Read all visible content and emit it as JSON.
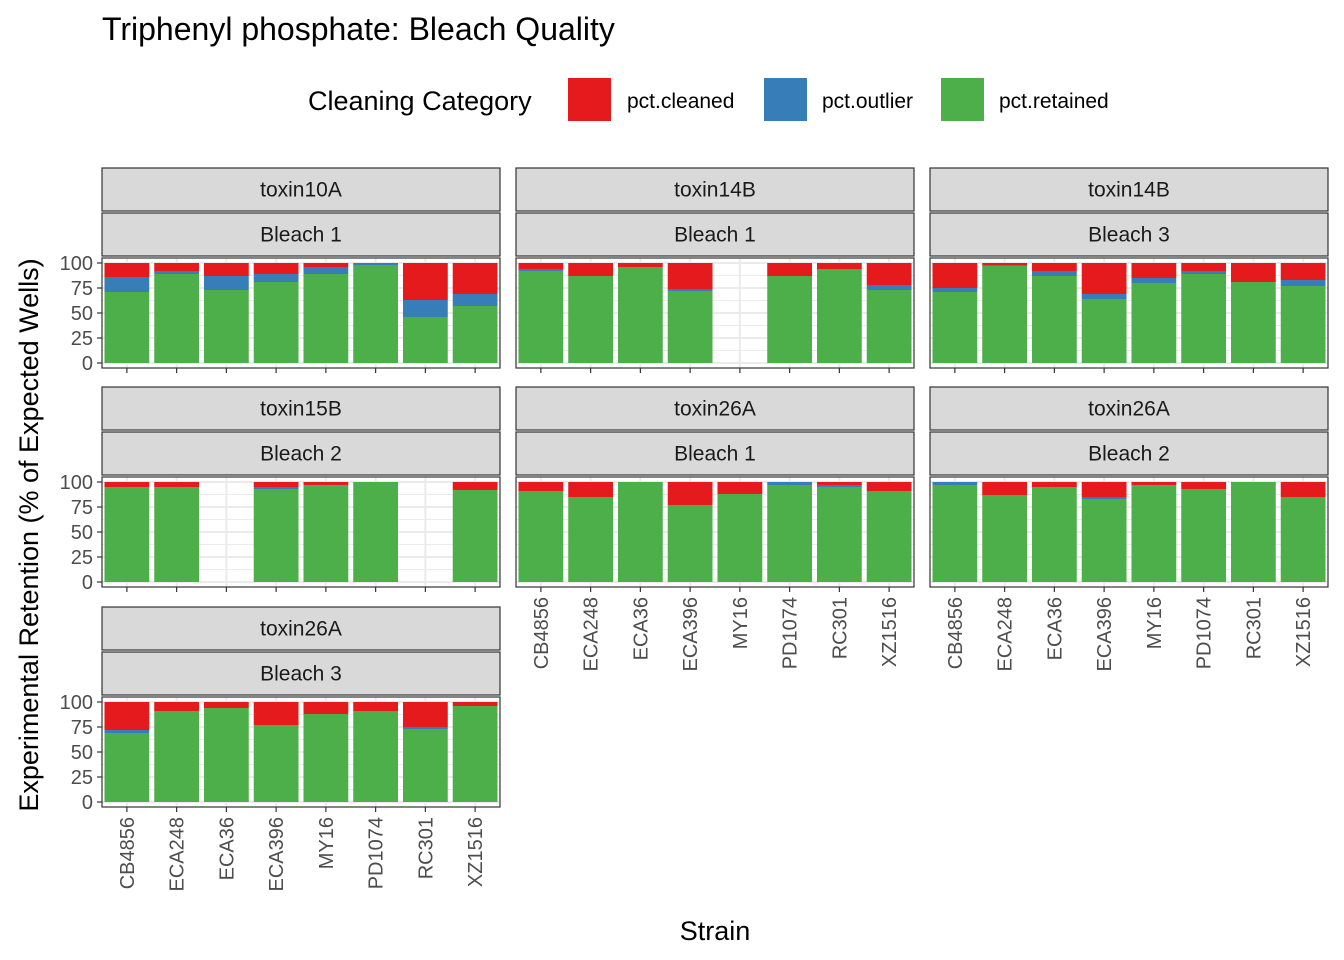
{
  "chart_data": {
    "type": "bar",
    "stacked": true,
    "title": "Triphenyl phosphate: Bleach Quality",
    "xlabel": "Strain",
    "ylabel": "Experimental Retention (% of Expected Wells)",
    "ylim": [
      0,
      100
    ],
    "yticks": [
      0,
      25,
      50,
      75,
      100
    ],
    "legend": {
      "title": "Cleaning Category",
      "position": "top",
      "entries": [
        {
          "name": "pct.cleaned",
          "color": "#E41A1C"
        },
        {
          "name": "pct.outlier",
          "color": "#377EB8"
        },
        {
          "name": "pct.retained",
          "color": "#4DAF4A"
        }
      ]
    },
    "stack_order_bottom_to_top": [
      "pct.retained",
      "pct.outlier",
      "pct.cleaned"
    ],
    "categories": [
      "CB4856",
      "ECA248",
      "ECA36",
      "ECA396",
      "MY16",
      "PD1074",
      "RC301",
      "XZ1516"
    ],
    "panels": [
      {
        "toxin": "toxin10A",
        "bleach": "Bleach 1",
        "retained": [
          71,
          89,
          73,
          81,
          89,
          98,
          46,
          57
        ],
        "outlier": [
          15,
          3,
          14,
          8,
          7,
          2,
          17,
          12
        ],
        "cleaned": [
          14,
          8,
          13,
          11,
          4,
          0,
          37,
          31
        ]
      },
      {
        "toxin": "toxin14B",
        "bleach": "Bleach 1",
        "retained": [
          92,
          87,
          96,
          72,
          null,
          87,
          94,
          73
        ],
        "outlier": [
          2,
          0,
          0,
          2,
          null,
          0,
          0,
          5
        ],
        "cleaned": [
          6,
          13,
          4,
          26,
          null,
          13,
          6,
          22
        ]
      },
      {
        "toxin": "toxin14B",
        "bleach": "Bleach 3",
        "retained": [
          71,
          97,
          87,
          64,
          80,
          89,
          81,
          77
        ],
        "outlier": [
          4,
          1,
          5,
          5,
          5,
          3,
          0,
          6
        ],
        "cleaned": [
          25,
          2,
          8,
          31,
          15,
          8,
          19,
          17
        ]
      },
      {
        "toxin": "toxin15B",
        "bleach": "Bleach 2",
        "retained": [
          95,
          95,
          null,
          93,
          97,
          100,
          null,
          92
        ],
        "outlier": [
          0,
          0,
          null,
          2,
          0,
          0,
          null,
          0
        ],
        "cleaned": [
          5,
          5,
          null,
          5,
          3,
          0,
          null,
          8
        ]
      },
      {
        "toxin": "toxin26A",
        "bleach": "Bleach 1",
        "retained": [
          91,
          85,
          100,
          77,
          88,
          97,
          95,
          91
        ],
        "outlier": [
          0,
          0,
          0,
          0,
          0,
          3,
          2,
          0
        ],
        "cleaned": [
          9,
          15,
          0,
          23,
          12,
          0,
          3,
          9
        ]
      },
      {
        "toxin": "toxin26A",
        "bleach": "Bleach 2",
        "retained": [
          97,
          87,
          95,
          83,
          97,
          93,
          100,
          85
        ],
        "outlier": [
          3,
          0,
          0,
          2,
          0,
          0,
          0,
          0
        ],
        "cleaned": [
          0,
          13,
          5,
          15,
          3,
          7,
          0,
          15
        ]
      },
      {
        "toxin": "toxin26A",
        "bleach": "Bleach 3",
        "retained": [
          69,
          91,
          94,
          77,
          88,
          91,
          73,
          96
        ],
        "outlier": [
          3,
          0,
          0,
          0,
          0,
          0,
          2,
          0
        ],
        "cleaned": [
          28,
          9,
          6,
          23,
          12,
          9,
          25,
          4
        ]
      }
    ]
  }
}
